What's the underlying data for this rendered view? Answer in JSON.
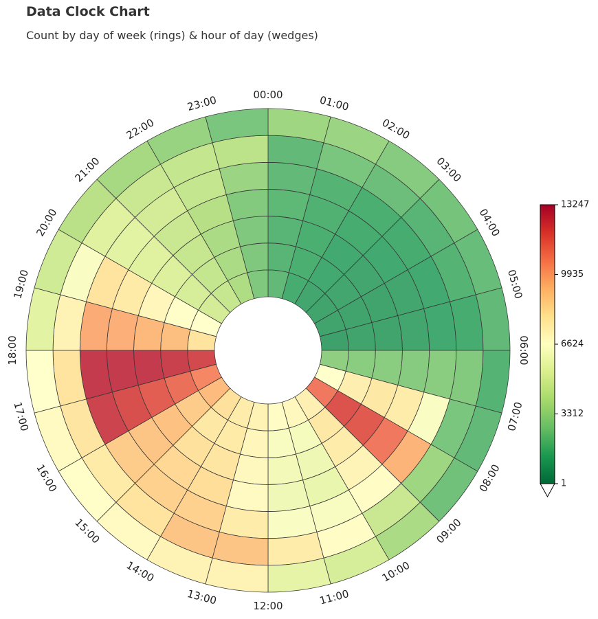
{
  "chart_data": {
    "type": "heatmap",
    "subtype": "polar-clock",
    "title": "Data Clock Chart",
    "subtitle": "Count by day of week (rings) & hour of day (wedges)",
    "hours": [
      "00:00",
      "01:00",
      "02:00",
      "03:00",
      "04:00",
      "05:00",
      "06:00",
      "07:00",
      "08:00",
      "09:00",
      "10:00",
      "11:00",
      "12:00",
      "13:00",
      "14:00",
      "15:00",
      "16:00",
      "17:00",
      "18:00",
      "19:00",
      "20:00",
      "21:00",
      "22:00",
      "23:00"
    ],
    "ring_order": "innermost ring = day 1, outermost ring = day 7",
    "values_by_hour": [
      [
        2000,
        1800,
        1800,
        1900,
        2000,
        2000,
        3400
      ],
      [
        1400,
        1500,
        1500,
        1600,
        1700,
        2500,
        3300
      ],
      [
        1200,
        1300,
        1300,
        1400,
        1500,
        2200,
        2800
      ],
      [
        1100,
        1200,
        1200,
        1300,
        1400,
        1800,
        2400
      ],
      [
        1100,
        1100,
        1100,
        1200,
        1300,
        1700,
        2100
      ],
      [
        1000,
        1100,
        1100,
        1200,
        1300,
        1400,
        2000
      ],
      [
        3000,
        2900,
        2900,
        2800,
        2900,
        2700,
        1700
      ],
      [
        6600,
        7500,
        7800,
        7600,
        6400,
        2500,
        2000
      ],
      [
        11000,
        12000,
        11800,
        11000,
        9500,
        3400,
        2300
      ],
      [
        7400,
        7800,
        7600,
        7200,
        6800,
        4600,
        3700
      ],
      [
        7000,
        6200,
        5900,
        5700,
        6300,
        6800,
        5000
      ],
      [
        6800,
        6300,
        6100,
        6000,
        6400,
        7600,
        5500
      ],
      [
        7300,
        7100,
        7000,
        6900,
        7600,
        9000,
        7300
      ],
      [
        7600,
        7700,
        7900,
        8200,
        8600,
        9000,
        7300
      ],
      [
        8100,
        7800,
        8100,
        8400,
        8600,
        8000,
        6900
      ],
      [
        9300,
        8800,
        9100,
        9000,
        8800,
        7700,
        6700
      ],
      [
        10600,
        11200,
        11700,
        12100,
        12500,
        7900,
        6900
      ],
      [
        12300,
        12600,
        12800,
        12800,
        12800,
        8000,
        6600
      ],
      [
        8000,
        9200,
        9400,
        9600,
        9700,
        7300,
        5400
      ],
      [
        6600,
        6700,
        7100,
        7700,
        8000,
        6400,
        4800
      ],
      [
        4900,
        5000,
        5200,
        5300,
        5400,
        5300,
        4100
      ],
      [
        4500,
        4400,
        4500,
        4600,
        4900,
        4600,
        3600
      ],
      [
        3800,
        3700,
        3700,
        4000,
        4400,
        4400,
        3200
      ],
      [
        2600,
        2600,
        2600,
        2700,
        3300,
        4200,
        2500
      ]
    ],
    "colorbar": {
      "colormap": "RdYlGn_r",
      "min": 1,
      "max": 13247,
      "ticks": [
        1,
        3312,
        6624,
        9935,
        13247
      ],
      "tick_labels": [
        "1",
        "3312",
        "6624",
        "9935",
        "13247"
      ],
      "extend": "min"
    }
  }
}
